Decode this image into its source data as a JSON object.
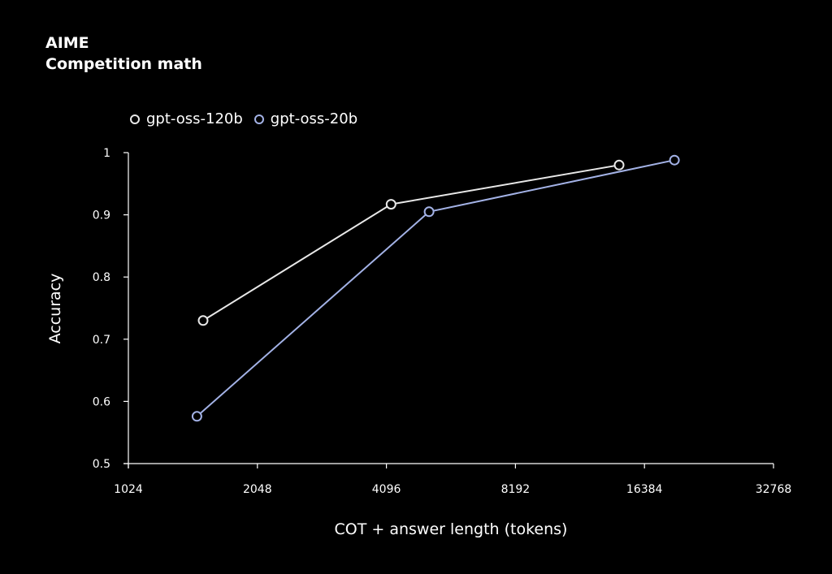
{
  "chart_data": {
    "type": "line",
    "title": "AIME",
    "subtitle": "Competition math",
    "xlabel": "COT + answer length (tokens)",
    "ylabel": "Accuracy",
    "x_scale": "log2",
    "xlim": [
      1024,
      32768
    ],
    "ylim": [
      0.5,
      1.0
    ],
    "x_ticks": [
      1024,
      2048,
      4096,
      8192,
      16384,
      32768
    ],
    "x_tick_labels": [
      "1024",
      "2048",
      "4096",
      "8192",
      "16384",
      "32768"
    ],
    "y_ticks": [
      0.5,
      0.6,
      0.7,
      0.8,
      0.9,
      1.0
    ],
    "y_tick_labels": [
      "0.5",
      "0.6",
      "0.7",
      "0.8",
      "0.9",
      "1"
    ],
    "grid": false,
    "legend_position": "top-left",
    "series": [
      {
        "name": "gpt-oss-120b",
        "color": "#e8e8e8",
        "x": [
          1530,
          4200,
          14300
        ],
        "y": [
          0.73,
          0.917,
          0.98
        ]
      },
      {
        "name": "gpt-oss-20b",
        "color": "#a3b2e6",
        "x": [
          1480,
          5150,
          19250
        ],
        "y": [
          0.576,
          0.905,
          0.988
        ]
      }
    ]
  }
}
